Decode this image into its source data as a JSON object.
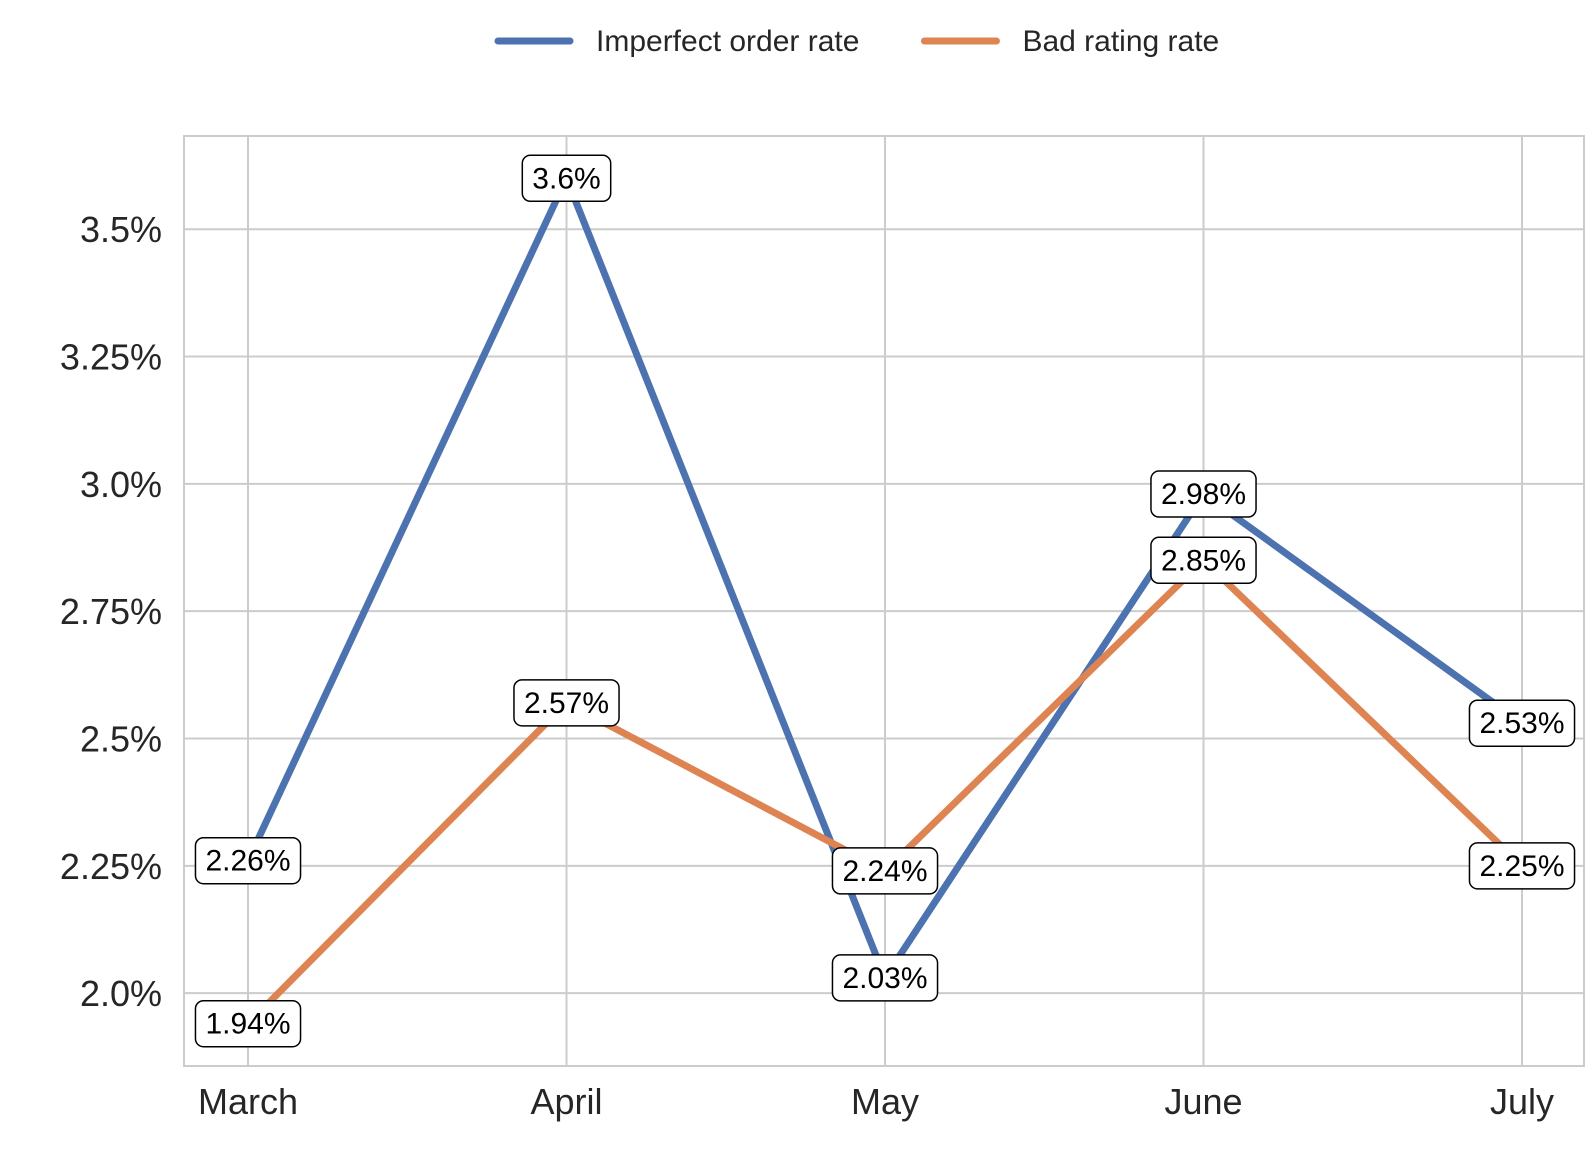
{
  "chart_data": {
    "type": "line",
    "categories": [
      "March",
      "April",
      "May",
      "June",
      "July"
    ],
    "series": [
      {
        "name": "Imperfect order rate",
        "color": "#4c72b0",
        "values": [
          2.26,
          3.6,
          2.03,
          2.98,
          2.53
        ],
        "labels": [
          "2.26%",
          "3.6%",
          "2.03%",
          "2.98%",
          "2.53%"
        ]
      },
      {
        "name": "Bad rating rate",
        "color": "#dd8452",
        "values": [
          1.94,
          2.57,
          2.24,
          2.85,
          2.25
        ],
        "labels": [
          "1.94%",
          "2.57%",
          "2.24%",
          "2.85%",
          "2.25%"
        ]
      }
    ],
    "yticks": [
      2.0,
      2.25,
      2.5,
      2.75,
      3.0,
      3.25,
      3.5
    ],
    "ytick_labels": [
      "2.0%",
      "2.25%",
      "2.5%",
      "2.75%",
      "3.0%",
      "3.25%",
      "3.5%"
    ],
    "ylim": [
      1.857,
      3.683
    ],
    "xlabel": "",
    "ylabel": "",
    "title": "",
    "grid": true,
    "legend_position": "top-center",
    "grid_color": "#cccccc",
    "frame_color": "#cccccc"
  }
}
